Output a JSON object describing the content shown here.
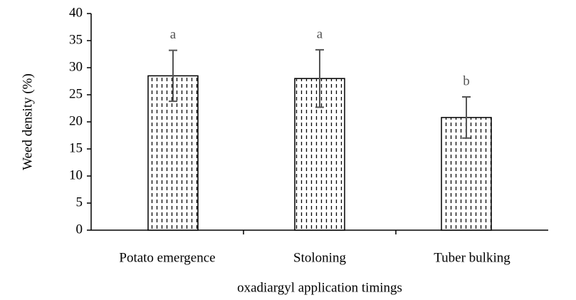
{
  "chart_data": {
    "type": "bar",
    "y_label": "Weed density (%)",
    "x_label": "oxadiargyl application timings",
    "categories": [
      "Potato emergence",
      "Stoloning",
      "Tuber bulking"
    ],
    "values": [
      28.5,
      28,
      20.8
    ],
    "errors": [
      4.7,
      5.3,
      3.8
    ],
    "annotations": [
      "a",
      "a",
      "b"
    ],
    "ylim": [
      0,
      40
    ],
    "yticks": [
      0,
      5,
      10,
      15,
      20,
      25,
      30,
      35,
      40
    ],
    "color": "#000000",
    "grid": false
  }
}
